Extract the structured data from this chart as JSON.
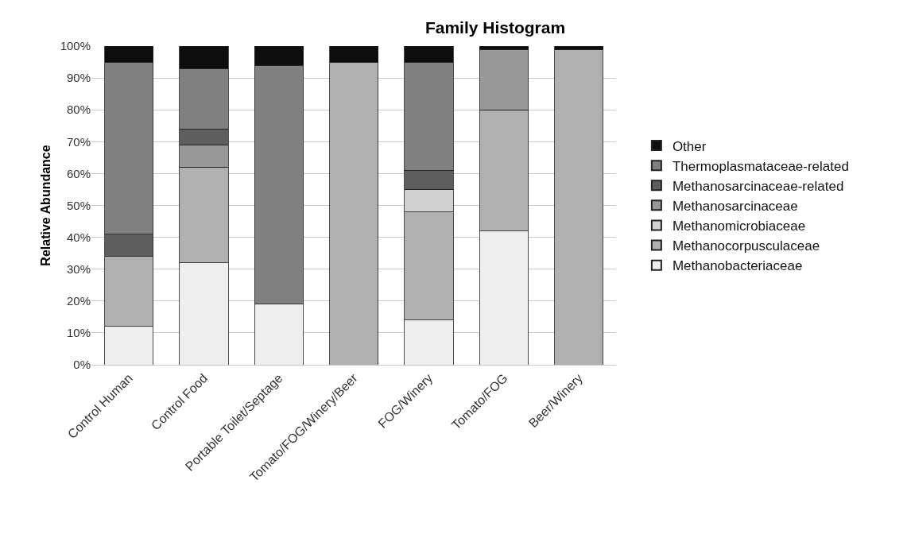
{
  "chart_data": {
    "type": "bar",
    "title": "Family Histogram",
    "ylabel": "Relative Abundance",
    "categories": [
      "Control Human",
      "Control Food",
      "Portable Toilet/Septage",
      "Tomato/FOG/Winery/Beer",
      "FOG/Winery",
      "Tomato/FOG",
      "Beer/Winery"
    ],
    "series": [
      {
        "name": "Methanobacteriaceae",
        "color": "#eeeeee",
        "values": [
          12,
          32,
          19,
          0,
          14,
          42,
          0
        ]
      },
      {
        "name": "Methanocorpusculaceae",
        "color": "#b0b0b0",
        "values": [
          22,
          30,
          0,
          95,
          34,
          38,
          99
        ]
      },
      {
        "name": "Methanomicrobiaceae",
        "color": "#d0d0d0",
        "values": [
          0,
          0,
          0,
          0,
          7,
          0,
          0
        ]
      },
      {
        "name": "Methanosarcinaceae",
        "color": "#999999",
        "values": [
          0,
          7,
          0,
          0,
          0,
          19,
          0
        ]
      },
      {
        "name": "Methanosarcinaceae-related",
        "color": "#5e5e5e",
        "values": [
          7,
          5,
          0,
          0,
          6,
          0,
          0
        ]
      },
      {
        "name": "Thermoplasmataceae-related",
        "color": "#808080",
        "values": [
          54,
          19,
          75,
          0,
          34,
          0,
          0
        ]
      },
      {
        "name": "Other",
        "color": "#0d0d0d",
        "values": [
          5,
          7,
          6,
          5,
          5,
          1,
          1
        ]
      }
    ],
    "stacked": true,
    "ylim": [
      0,
      100
    ],
    "yticks": [
      {
        "value": 0,
        "label": "0%"
      },
      {
        "value": 10,
        "label": "10%"
      },
      {
        "value": 20,
        "label": "20%"
      },
      {
        "value": 30,
        "label": "30%"
      },
      {
        "value": 40,
        "label": "40%"
      },
      {
        "value": 50,
        "label": "50%"
      },
      {
        "value": 60,
        "label": "60%"
      },
      {
        "value": 70,
        "label": "70%"
      },
      {
        "value": 80,
        "label": "80%"
      },
      {
        "value": 90,
        "label": "90%"
      },
      {
        "value": 100,
        "label": "100%"
      }
    ],
    "grid": "y",
    "legend": "right"
  }
}
